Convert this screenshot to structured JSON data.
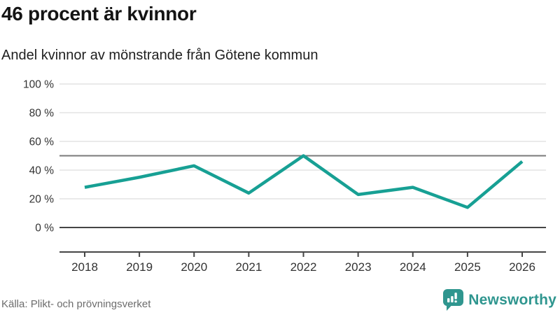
{
  "header": {
    "title": "46 procent är kvinnor",
    "subtitle": "Andel kvinnor av mönstrande från Götene kommun"
  },
  "chart_data": {
    "type": "line",
    "title": "46 procent är kvinnor",
    "subtitle": "Andel kvinnor av mönstrande från Götene kommun",
    "categories": [
      "2018",
      "2019",
      "2020",
      "2021",
      "2022",
      "2023",
      "2024",
      "2025",
      "2026"
    ],
    "series": [
      {
        "name": "Andel kvinnor av mönstrande",
        "values": [
          28,
          35,
          43,
          24,
          50,
          23,
          28,
          14,
          46
        ]
      }
    ],
    "ylim": [
      0,
      100
    ],
    "yticks": [
      0,
      20,
      40,
      60,
      80,
      100
    ],
    "ytick_labels": [
      "0 %",
      "20 %",
      "40 %",
      "60 %",
      "80 %",
      "100 %"
    ],
    "reference_line_y": 50,
    "grid": true,
    "legend": "none",
    "line_color": "#17a094"
  },
  "footer": {
    "source": "Källa: Plikt- och prövningsverket",
    "logo_text": "Newsworthy"
  },
  "colors": {
    "accent_teal": "#17a094",
    "logo_teal": "#2f968f",
    "grid": "#e3e3e3",
    "reference_line": "#7a7a7a",
    "axis": "#454545",
    "tick_text": "#333333"
  }
}
